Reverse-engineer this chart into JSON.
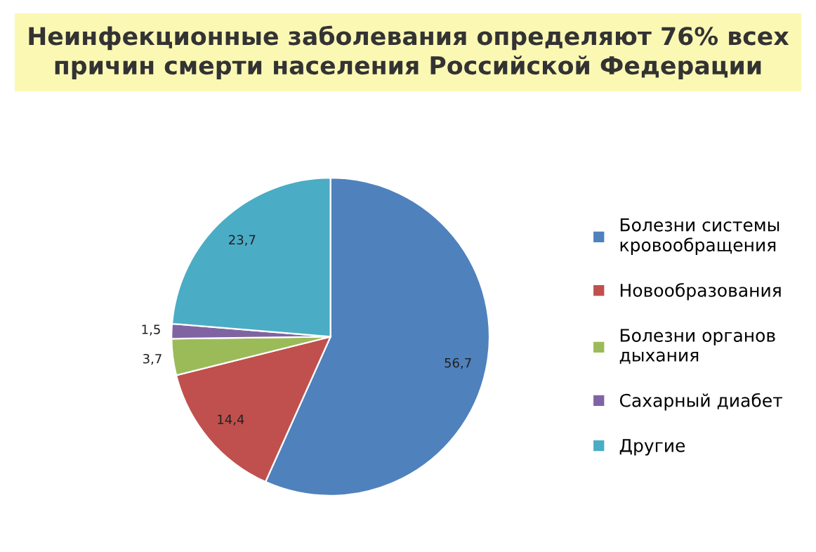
{
  "chart_data": {
    "type": "pie",
    "title": "Неинфекционные заболевания определяют 76% всех причин смерти населения Российской Федерации",
    "categories": [
      "Болезни системы кровообращения",
      "Новообразования",
      "Болезни органов дыхания",
      "Сахарный диабет",
      "Другие"
    ],
    "values": [
      56.7,
      14.4,
      3.7,
      1.5,
      23.7
    ],
    "value_labels": [
      "56,7",
      "14,4",
      "3,7",
      "1,5",
      "23,7"
    ],
    "colors": [
      "#4f81bd",
      "#c0504d",
      "#9bbb59",
      "#8064a2",
      "#4bacc6"
    ],
    "legend": "right"
  }
}
